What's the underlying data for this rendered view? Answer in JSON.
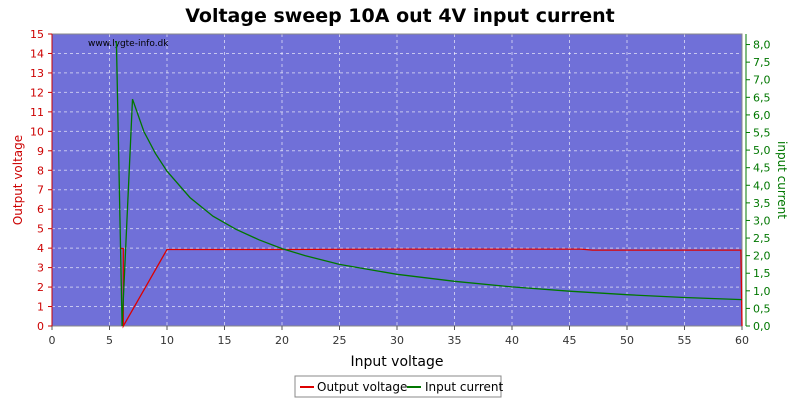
{
  "chart_data": {
    "type": "line",
    "title": "Voltage sweep 10A out 4V input current",
    "watermark": "www.lygte-info.dk",
    "xlabel": "Input voltage",
    "ylabel_left": "Output voltage",
    "ylabel_right": "input current",
    "xlim": [
      0,
      60
    ],
    "ylim_left": [
      0,
      15
    ],
    "ylim_right": [
      0,
      8.3
    ],
    "xticks": [
      0,
      5,
      10,
      15,
      20,
      25,
      30,
      35,
      40,
      45,
      50,
      55,
      60
    ],
    "yticks_left": [
      0,
      1,
      2,
      3,
      4,
      5,
      6,
      7,
      8,
      9,
      10,
      11,
      12,
      13,
      14,
      15
    ],
    "yticks_right": [
      "0,0",
      "0,5",
      "1,0",
      "1,5",
      "2,0",
      "2,5",
      "3,0",
      "3,5",
      "4,0",
      "4,5",
      "5,0",
      "5,5",
      "6,0",
      "6,5",
      "7,0",
      "7,5",
      "8,0"
    ],
    "grid": true,
    "colors": {
      "plot_bg": "#7070d8",
      "output_voltage": "#dd0000",
      "input_current": "#007700",
      "left_axis": "#cc0000",
      "right_axis": "#007700"
    },
    "legend_position": "bottom-center",
    "series": [
      {
        "name": "Output voltage",
        "axis": "left",
        "x": [
          5.9,
          6.2,
          6.2,
          10,
          20,
          30,
          40,
          46,
          47,
          55,
          59.9,
          60
        ],
        "y": [
          4.0,
          3.97,
          0.0,
          3.93,
          3.93,
          3.95,
          3.95,
          3.95,
          3.9,
          3.9,
          3.9,
          0.0
        ]
      },
      {
        "name": "Input current",
        "axis": "right",
        "x": [
          5.6,
          6.1,
          7,
          8,
          9,
          10,
          12,
          14,
          16,
          18,
          20,
          22,
          25,
          28,
          30,
          35,
          40,
          45,
          50,
          55,
          60
        ],
        "y": [
          8.1,
          0.0,
          6.45,
          5.52,
          4.9,
          4.4,
          3.65,
          3.12,
          2.75,
          2.45,
          2.2,
          2.0,
          1.75,
          1.58,
          1.47,
          1.27,
          1.11,
          0.99,
          0.89,
          0.81,
          0.75
        ]
      }
    ]
  }
}
